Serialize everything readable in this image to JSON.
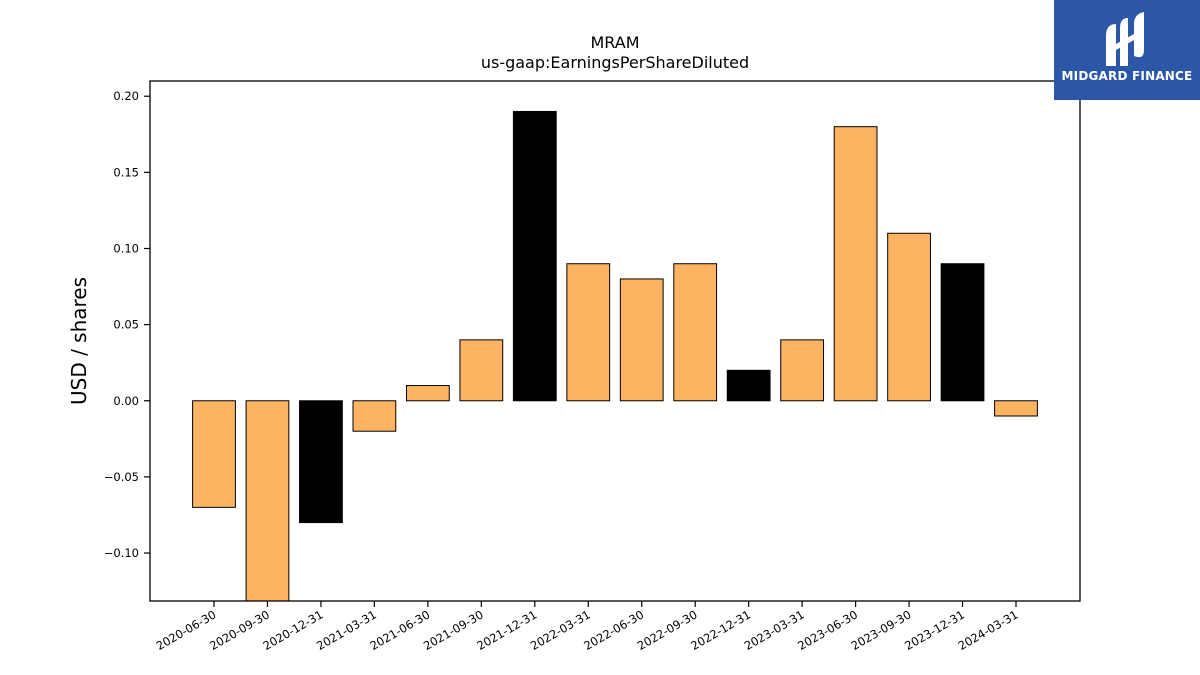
{
  "chart_data": {
    "type": "bar",
    "title": "MRAM",
    "subtitle": "us-gaap:EarningsPerShareDiluted",
    "xlabel": "",
    "ylabel": "USD / shares",
    "ylim": [
      -0.1315,
      0.21
    ],
    "yticks": [
      -0.1,
      -0.05,
      0.0,
      0.05,
      0.1,
      0.15,
      0.2
    ],
    "ytick_labels": [
      "−0.10",
      "−0.05",
      "0.00",
      "0.05",
      "0.10",
      "0.15",
      "0.20"
    ],
    "categories": [
      "2020-06-30",
      "2020-09-30",
      "2020-12-31",
      "2021-03-31",
      "2021-06-30",
      "2021-09-30",
      "2021-12-31",
      "2022-03-31",
      "2022-06-30",
      "2022-09-30",
      "2022-12-31",
      "2023-03-31",
      "2023-06-30",
      "2023-09-30",
      "2023-12-31",
      "2024-03-31"
    ],
    "values": [
      -0.07,
      -0.14,
      -0.08,
      -0.02,
      0.01,
      0.04,
      0.19,
      0.09,
      0.08,
      0.09,
      0.02,
      0.04,
      0.18,
      0.11,
      0.09,
      -0.01
    ],
    "bar_colors": [
      "#fdb462",
      "#fdb462",
      "#000000",
      "#fdb462",
      "#fdb462",
      "#fdb462",
      "#000000",
      "#fdb462",
      "#fdb462",
      "#fdb462",
      "#000000",
      "#fdb462",
      "#fdb462",
      "#fdb462",
      "#000000",
      "#fdb462"
    ],
    "grid": false,
    "legend": "none"
  },
  "logo": {
    "text": "MIDGARD FINANCE",
    "background": "#2c57a8"
  }
}
